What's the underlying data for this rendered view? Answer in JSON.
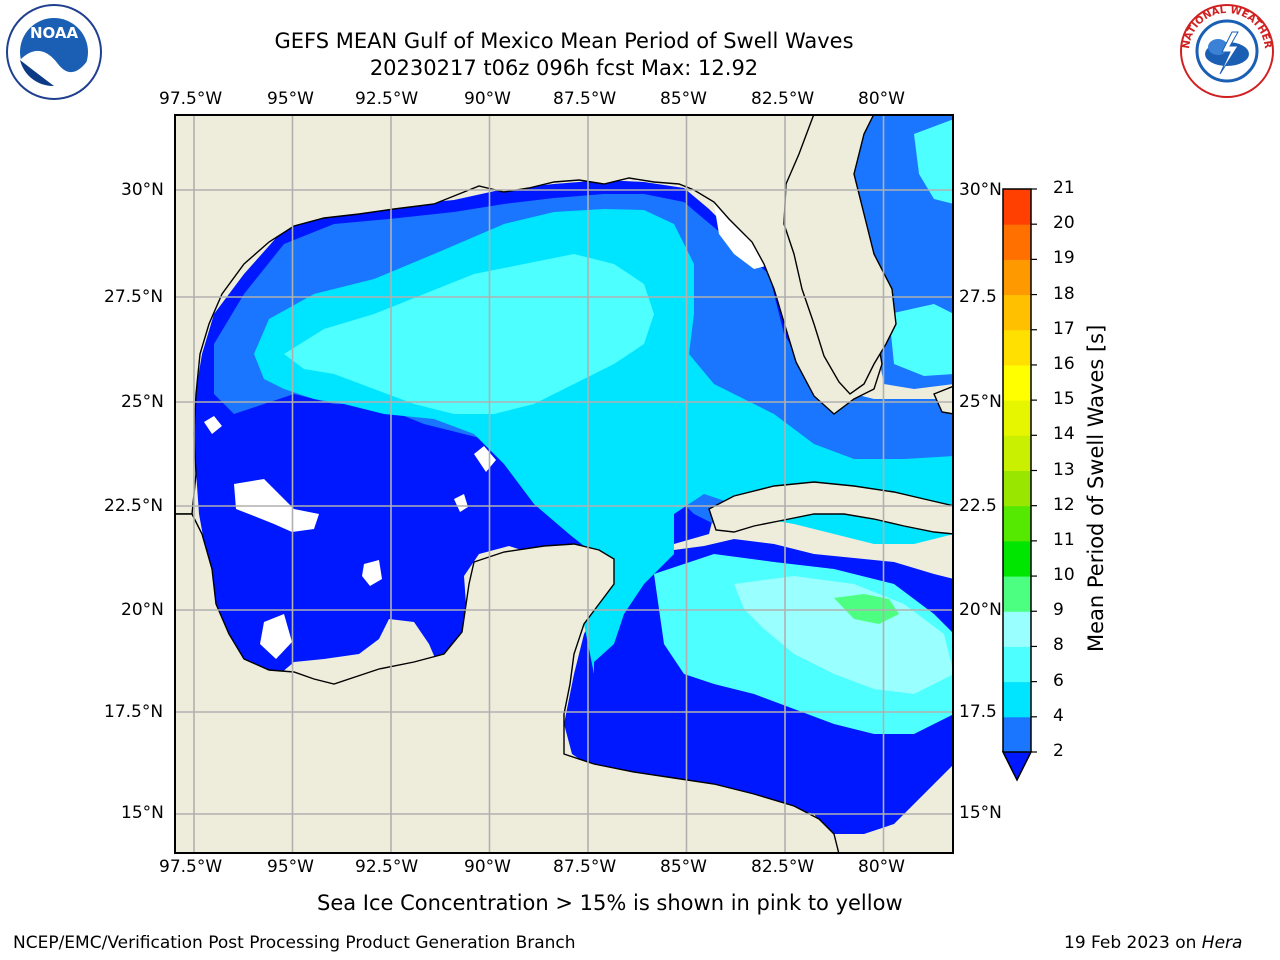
{
  "title": {
    "line1": "GEFS MEAN Gulf of Mexico Mean Period of Swell Waves",
    "line2": "20230217 t06z 096h fcst   Max: 12.92"
  },
  "logos": {
    "left": {
      "icon": "noaa-logo",
      "text": "NOAA"
    },
    "right": {
      "icon": "nws-logo",
      "text": "NATIONAL WEATHER SERVICE"
    }
  },
  "map": {
    "lon_labels": [
      "97.5°W",
      "95°W",
      "92.5°W",
      "90°W",
      "87.5°W",
      "85°W",
      "82.5°W",
      "80°W"
    ],
    "lat_labels_left": [
      "30°N",
      "27.5°N",
      "25°N",
      "22.5°N",
      "20°N",
      "17.5°N",
      "15°N"
    ],
    "lat_labels_right": [
      "30°N",
      "27.5",
      "25°N",
      "22.5",
      "20°N",
      "17.5",
      "15°N"
    ],
    "extent": {
      "lon_min": -98.0,
      "lon_max": -78.2,
      "lat_min": 14.0,
      "lat_max": 31.8
    },
    "colors": {
      "land": "#eeeddc",
      "grid": "#b0b0b0",
      "coast": "#000000"
    }
  },
  "colorbar": {
    "label": "Mean Period of Swell Waves [s]",
    "ticks": [
      "2",
      "4",
      "6",
      "8",
      "9",
      "10",
      "11",
      "12",
      "13",
      "14",
      "15",
      "16",
      "17",
      "18",
      "19",
      "20",
      "21"
    ],
    "colors": [
      "#1a75ff",
      "#00e5ff",
      "#4dffff",
      "#99ffff",
      "#4dff80",
      "#00e600",
      "#55e800",
      "#99e600",
      "#c8f000",
      "#e6f500",
      "#ffff00",
      "#ffe000",
      "#ffc000",
      "#ff9900",
      "#ff7000",
      "#ff4000",
      "#ff0000"
    ],
    "under_color": "#0018ff"
  },
  "footer": {
    "sea_ice_note": "Sea Ice Concentration > 15% is shown in pink to yellow",
    "left": "NCEP/EMC/Verification Post Processing Product Generation Branch",
    "right_date": "19 Feb 2023 on ",
    "right_host": "Hera"
  }
}
